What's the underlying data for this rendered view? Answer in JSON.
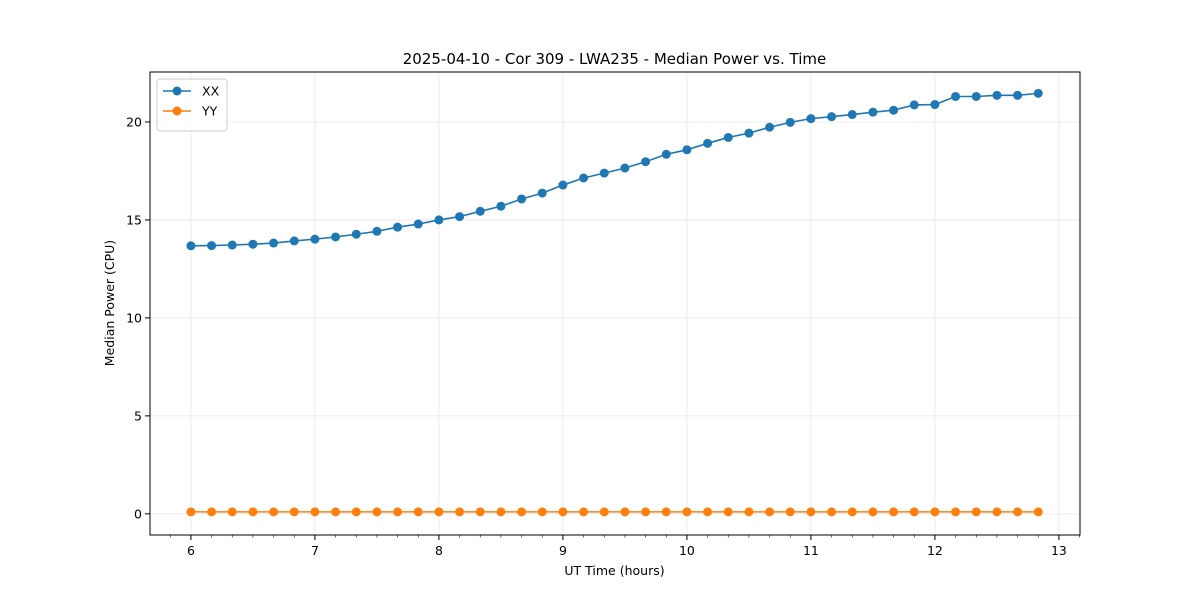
{
  "chart_data": {
    "type": "line",
    "title": "2025-04-10 - Cor 309 - LWA235 - Median Power vs. Time",
    "xlabel": "UT Time (hours)",
    "ylabel": "Median Power (CPU)",
    "xlim": [
      5.67,
      13.17
    ],
    "ylim": [
      -1.08,
      22.55
    ],
    "xticks": [
      6,
      7,
      8,
      9,
      10,
      11,
      12,
      13
    ],
    "yticks": [
      0,
      5,
      10,
      15,
      20
    ],
    "grid": true,
    "legend_position": "top-left",
    "x": [
      6.0,
      6.1667,
      6.3333,
      6.5,
      6.6667,
      6.8333,
      7.0,
      7.1667,
      7.3333,
      7.5,
      7.6667,
      7.8333,
      8.0,
      8.1667,
      8.3333,
      8.5,
      8.6667,
      8.8333,
      9.0,
      9.1667,
      9.3333,
      9.5,
      9.6667,
      9.8333,
      10.0,
      10.1667,
      10.3333,
      10.5,
      10.6667,
      10.8333,
      11.0,
      11.1667,
      11.3333,
      11.5,
      11.6667,
      11.8333,
      12.0,
      12.1667,
      12.3333,
      12.5,
      12.6667,
      12.8333
    ],
    "series": [
      {
        "name": "XX",
        "color": "#1f77b4",
        "values": [
          13.68,
          13.69,
          13.72,
          13.76,
          13.82,
          13.93,
          14.02,
          14.13,
          14.27,
          14.42,
          14.63,
          14.79,
          15.0,
          15.17,
          15.44,
          15.7,
          16.07,
          16.37,
          16.78,
          17.14,
          17.39,
          17.65,
          17.97,
          18.35,
          18.58,
          18.91,
          19.21,
          19.43,
          19.73,
          19.98,
          20.17,
          20.27,
          20.38,
          20.5,
          20.6,
          20.87,
          20.89,
          21.3,
          21.3,
          21.36,
          21.36,
          21.46
        ]
      },
      {
        "name": "YY",
        "color": "#ff7f0e",
        "values": [
          0.1,
          0.1,
          0.1,
          0.1,
          0.1,
          0.1,
          0.1,
          0.1,
          0.1,
          0.1,
          0.1,
          0.1,
          0.1,
          0.1,
          0.1,
          0.1,
          0.1,
          0.1,
          0.1,
          0.1,
          0.1,
          0.1,
          0.1,
          0.1,
          0.1,
          0.1,
          0.1,
          0.1,
          0.1,
          0.1,
          0.1,
          0.1,
          0.1,
          0.1,
          0.1,
          0.1,
          0.1,
          0.1,
          0.1,
          0.1,
          0.1,
          0.1
        ]
      }
    ]
  }
}
